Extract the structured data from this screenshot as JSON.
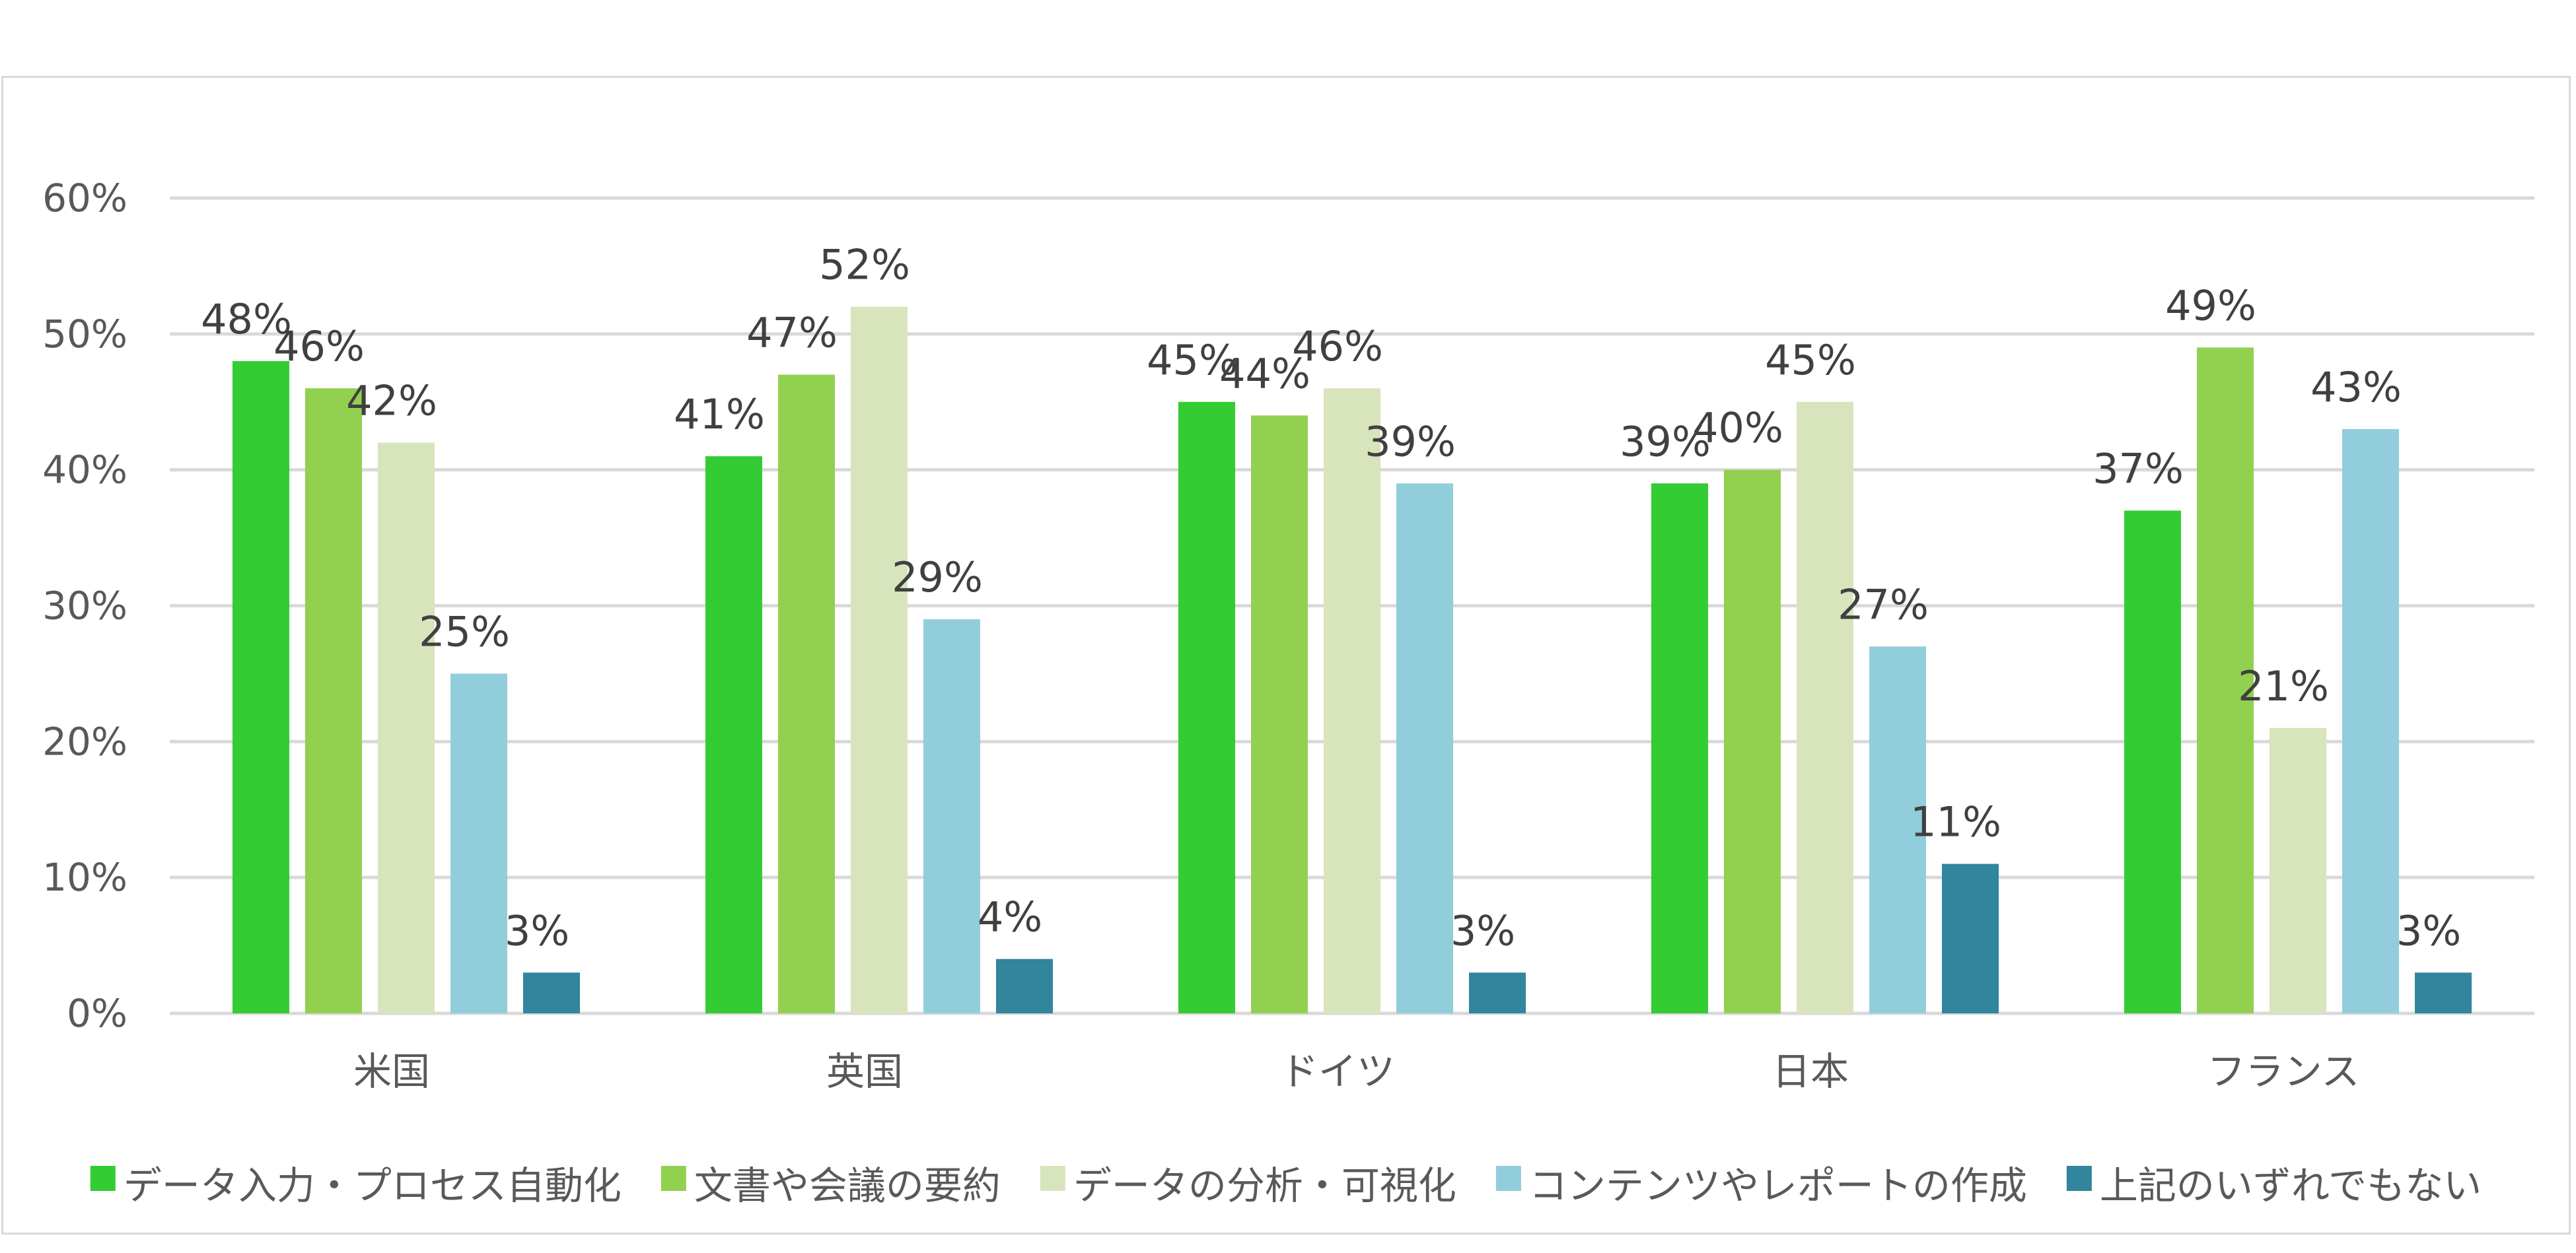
{
  "chart_data": {
    "type": "bar",
    "title": "",
    "xlabel": "",
    "ylabel": "",
    "ylim": [
      0,
      60
    ],
    "y_ticks": [
      "0%",
      "10%",
      "20%",
      "30%",
      "40%",
      "50%",
      "60%"
    ],
    "grid": true,
    "legend_position": "bottom",
    "categories": [
      "米国",
      "英国",
      "ドイツ",
      "日本",
      "フランス"
    ],
    "series": [
      {
        "name": "データ入力・プロセス自動化",
        "color": "#33cc33",
        "values": [
          48,
          41,
          45,
          39,
          37
        ],
        "labels": [
          "48%",
          "41%",
          "45%",
          "39%",
          "37%"
        ]
      },
      {
        "name": "文書や会議の要約",
        "color": "#92d050",
        "values": [
          46,
          47,
          44,
          40,
          49
        ],
        "labels": [
          "46%",
          "47%",
          "44%",
          "40%",
          "49%"
        ]
      },
      {
        "name": "データの分析・可視化",
        "color": "#d8e4bc",
        "values": [
          42,
          52,
          46,
          45,
          21
        ],
        "labels": [
          "42%",
          "52%",
          "46%",
          "45%",
          "21%"
        ]
      },
      {
        "name": "コンテンツやレポートの作成",
        "color": "#92cddc",
        "values": [
          25,
          29,
          39,
          27,
          43
        ],
        "labels": [
          "25%",
          "29%",
          "39%",
          "27%",
          "43%"
        ]
      },
      {
        "name": "上記のいずれでもない",
        "color": "#31859c",
        "values": [
          3,
          4,
          3,
          11,
          3
        ],
        "labels": [
          "3%",
          "4%",
          "3%",
          "11%",
          "3%"
        ]
      }
    ]
  }
}
